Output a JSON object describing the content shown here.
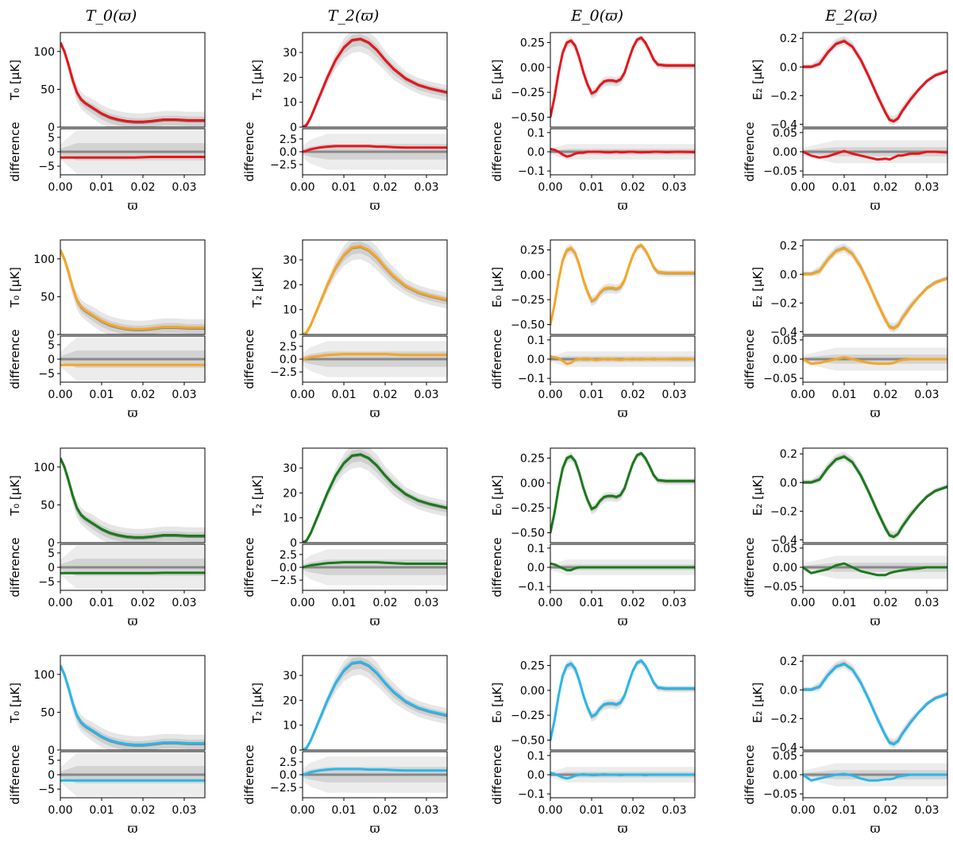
{
  "chart_data": {
    "type": "line",
    "layout": "4 rows x 4 columns, each panel with a main plot and a difference subplot",
    "column_titles": [
      "T_0(ϖ)",
      "T_2(ϖ)",
      "E_0(ϖ)",
      "E_2(ϖ)"
    ],
    "xlabel": "ϖ",
    "diff_ylabel": "difference",
    "xlim": [
      0,
      0.035
    ],
    "xticks": [
      0.0,
      0.01,
      0.02,
      0.03
    ],
    "xtick_labels": [
      "0.00",
      "0.01",
      "0.02",
      "0.03"
    ],
    "row_colors": [
      "#e8141b",
      "#f5a623",
      "#1a7a1a",
      "#29b6ea"
    ],
    "reference_color": "#888888",
    "band_color": "#dcdcdc",
    "columns": [
      {
        "key": "T0",
        "ylabel": "T₀ [μK]",
        "ylim": [
          0,
          125
        ],
        "yticks": [
          0,
          50,
          100
        ],
        "ytick_labels": [
          "0",
          "50",
          "100"
        ],
        "diff_ylim": [
          -8,
          8
        ],
        "diff_yticks": [
          -5,
          0,
          5
        ],
        "diff_ytick_labels": [
          "−5",
          "0",
          "5"
        ],
        "x": [
          0.0,
          0.001,
          0.002,
          0.003,
          0.004,
          0.005,
          0.006,
          0.008,
          0.01,
          0.012,
          0.014,
          0.016,
          0.018,
          0.02,
          0.022,
          0.025,
          0.028,
          0.031,
          0.035
        ],
        "y": [
          112,
          100,
          82,
          62,
          46,
          37,
          32,
          25,
          18,
          13,
          10,
          8,
          7,
          7,
          8,
          10,
          10,
          9,
          9
        ],
        "ref_offset": 3,
        "band_halfwidth": [
          2,
          3,
          5,
          6,
          7,
          7,
          7,
          8,
          8,
          8,
          8,
          8,
          8,
          8,
          8,
          8,
          8,
          8,
          8
        ],
        "diff_rows": [
          [
            -2,
            -2,
            -2,
            -2,
            -2,
            -2,
            -2,
            -2,
            -2,
            -2,
            -2,
            -2,
            -2,
            -1.9,
            -1.8,
            -1.8,
            -1.8,
            -1.8,
            -1.8
          ],
          [
            -2,
            -2,
            -2,
            -2,
            -2,
            -2,
            -2,
            -2,
            -2,
            -2,
            -2,
            -2,
            -2,
            -2,
            -2,
            -2,
            -2,
            -2,
            -2
          ],
          [
            -2,
            -2,
            -2,
            -2,
            -2,
            -2,
            -2,
            -2,
            -2,
            -2,
            -2,
            -2,
            -2,
            -2,
            -2,
            -1.9,
            -1.9,
            -1.9,
            -1.9
          ],
          [
            -2,
            -2,
            -2,
            -2,
            -2,
            -2,
            -2,
            -2,
            -2,
            -2,
            -2,
            -2,
            -2,
            -2,
            -2,
            -2,
            -2,
            -2,
            -2
          ]
        ],
        "diff_band_outer": 7.5,
        "diff_band_inner": 3.0
      },
      {
        "key": "T2",
        "ylabel": "T₂ [μK]",
        "ylim": [
          0,
          38
        ],
        "yticks": [
          0,
          10,
          20,
          30
        ],
        "ytick_labels": [
          "0",
          "10",
          "20",
          "30"
        ],
        "diff_ylim": [
          -4.5,
          4.5
        ],
        "diff_yticks": [
          -2.5,
          0,
          2.5
        ],
        "diff_ytick_labels": [
          "−2.5",
          "0.0",
          "2.5"
        ],
        "x": [
          0.0,
          0.001,
          0.002,
          0.004,
          0.006,
          0.008,
          0.01,
          0.012,
          0.014,
          0.016,
          0.018,
          0.02,
          0.022,
          0.025,
          0.028,
          0.031,
          0.035
        ],
        "y": [
          0,
          1,
          4,
          12,
          20,
          27,
          32,
          35,
          35.5,
          34,
          31,
          27,
          23.5,
          19.5,
          17,
          15.5,
          14
        ],
        "ref_offset": 0.8,
        "band_halfwidth": [
          0,
          0.2,
          0.5,
          1,
          1.5,
          2,
          2.5,
          3,
          3,
          3,
          3,
          2.5,
          2.5,
          2,
          2,
          2,
          2
        ],
        "diff_rows": [
          [
            0,
            0.2,
            0.5,
            0.8,
            1.0,
            1.1,
            1.1,
            1.1,
            1.1,
            1.1,
            1.0,
            1.0,
            0.9,
            0.8,
            0.8,
            0.8,
            0.8
          ],
          [
            0,
            0.2,
            0.4,
            0.6,
            0.8,
            0.9,
            1.0,
            1.0,
            1.0,
            1.0,
            1.0,
            1.0,
            0.9,
            0.8,
            0.8,
            0.8,
            0.8
          ],
          [
            0,
            0.2,
            0.4,
            0.6,
            0.8,
            0.9,
            1.0,
            1.0,
            1.0,
            1.0,
            1.0,
            0.9,
            0.8,
            0.7,
            0.7,
            0.7,
            0.7
          ],
          [
            0,
            0.2,
            0.5,
            0.8,
            1.0,
            1.1,
            1.1,
            1.1,
            1.1,
            1.0,
            1.0,
            1.0,
            0.9,
            0.8,
            0.8,
            0.8,
            0.8
          ]
        ],
        "diff_band_outer": 3.5,
        "diff_band_inner": 1.5
      },
      {
        "key": "E0",
        "ylabel": "E₀ [μK]",
        "ylim": [
          -0.6,
          0.35
        ],
        "yticks": [
          -0.5,
          -0.25,
          0.0,
          0.25
        ],
        "ytick_labels": [
          "−0.50",
          "−0.25",
          "0.00",
          "0.25"
        ],
        "diff_ylim": [
          -0.12,
          0.12
        ],
        "diff_yticks": [
          -0.1,
          0.0,
          0.1
        ],
        "diff_ytick_labels": [
          "−0.1",
          "0.0",
          "0.1"
        ],
        "x": [
          0.0,
          0.001,
          0.002,
          0.003,
          0.004,
          0.005,
          0.006,
          0.007,
          0.008,
          0.009,
          0.01,
          0.011,
          0.012,
          0.013,
          0.014,
          0.015,
          0.016,
          0.017,
          0.018,
          0.019,
          0.02,
          0.021,
          0.022,
          0.023,
          0.024,
          0.025,
          0.026,
          0.028,
          0.031,
          0.035
        ],
        "y": [
          -0.5,
          -0.3,
          -0.05,
          0.15,
          0.25,
          0.27,
          0.22,
          0.1,
          -0.05,
          -0.17,
          -0.26,
          -0.24,
          -0.18,
          -0.14,
          -0.13,
          -0.13,
          -0.14,
          -0.12,
          -0.05,
          0.08,
          0.2,
          0.28,
          0.3,
          0.25,
          0.17,
          0.08,
          0.03,
          0.02,
          0.02,
          0.02
        ],
        "ref_offset": 0.015,
        "band_halfwidth": [
          0.02,
          0.02,
          0.02,
          0.03,
          0.03,
          0.03,
          0.03,
          0.03,
          0.03,
          0.03,
          0.03,
          0.03,
          0.03,
          0.03,
          0.03,
          0.03,
          0.03,
          0.03,
          0.03,
          0.02,
          0.02,
          0.02,
          0.02,
          0.02,
          0.02,
          0.02,
          0.02,
          0.02,
          0.02,
          0.02
        ],
        "diff_rows": [
          [
            0.015,
            0.01,
            0.0,
            -0.015,
            -0.025,
            -0.02,
            -0.01,
            -0.005,
            -0.005,
            0.0,
            0.0,
            0.0,
            0.0,
            -0.002,
            -0.003,
            -0.002,
            0.0,
            -0.003,
            -0.002,
            0.0,
            0.0,
            -0.002,
            -0.003,
            -0.002,
            -0.002,
            0.0,
            0.0,
            -0.002,
            0.0,
            -0.002
          ],
          [
            0.015,
            0.01,
            0.005,
            -0.01,
            -0.025,
            -0.02,
            -0.005,
            0.0,
            0.002,
            0.003,
            0.0,
            -0.005,
            -0.002,
            0.0,
            0.002,
            0.0,
            -0.002,
            -0.004,
            0.0,
            0.0,
            0.002,
            0.0,
            -0.002,
            0.0,
            0.0,
            0.002,
            0.0,
            0.0,
            0.002,
            0.0
          ],
          [
            0.02,
            0.015,
            0.005,
            -0.005,
            -0.015,
            -0.015,
            -0.005,
            0.0,
            0.0,
            0.0,
            0.0,
            0.0,
            0.0,
            0.0,
            0.0,
            0.0,
            0.0,
            0.0,
            0.0,
            0.0,
            0.0,
            0.0,
            0.0,
            0.0,
            0.0,
            0.0,
            0.0,
            0.0,
            0.0,
            0.0
          ],
          [
            0.01,
            0.005,
            -0.005,
            -0.015,
            -0.02,
            -0.015,
            -0.005,
            0.0,
            0.002,
            0.0,
            -0.002,
            -0.002,
            0.0,
            0.002,
            0.0,
            0.0,
            0.0,
            -0.002,
            0.0,
            0.0,
            0.0,
            0.0,
            0.0,
            -0.002,
            0.0,
            0.0,
            0.0,
            0.0,
            0.0,
            0.0
          ]
        ],
        "diff_band_outer": 0.04,
        "diff_band_inner": 0.015
      },
      {
        "key": "E2",
        "ylabel": "E₂ [μK]",
        "ylim": [
          -0.42,
          0.24
        ],
        "yticks": [
          -0.4,
          -0.2,
          0.0,
          0.2
        ],
        "ytick_labels": [
          "−0.4",
          "−0.2",
          "0.0",
          "0.2"
        ],
        "diff_ylim": [
          -0.06,
          0.06
        ],
        "diff_yticks": [
          -0.05,
          0.0,
          0.05
        ],
        "diff_ytick_labels": [
          "−0.05",
          "0.00",
          "0.05"
        ],
        "x": [
          0.0,
          0.002,
          0.004,
          0.006,
          0.008,
          0.01,
          0.012,
          0.014,
          0.016,
          0.018,
          0.02,
          0.021,
          0.022,
          0.023,
          0.024,
          0.026,
          0.028,
          0.03,
          0.032,
          0.035
        ],
        "y": [
          0.0,
          0.0,
          0.02,
          0.1,
          0.16,
          0.18,
          0.14,
          0.05,
          -0.07,
          -0.2,
          -0.32,
          -0.37,
          -0.38,
          -0.36,
          -0.31,
          -0.23,
          -0.16,
          -0.1,
          -0.06,
          -0.03
        ],
        "ref_offset": -0.01,
        "band_halfwidth": [
          0.01,
          0.01,
          0.02,
          0.02,
          0.02,
          0.02,
          0.02,
          0.02,
          0.02,
          0.02,
          0.02,
          0.02,
          0.02,
          0.02,
          0.02,
          0.02,
          0.01,
          0.01,
          0.01,
          0.01
        ],
        "diff_rows": [
          [
            0.0,
            -0.01,
            -0.015,
            -0.012,
            -0.005,
            0.002,
            -0.005,
            -0.01,
            -0.015,
            -0.02,
            -0.018,
            -0.02,
            -0.015,
            -0.01,
            -0.01,
            -0.005,
            -0.005,
            0.0,
            0.0,
            -0.002
          ],
          [
            0.0,
            -0.012,
            -0.01,
            -0.005,
            0.0,
            0.005,
            0.0,
            -0.005,
            -0.01,
            -0.012,
            -0.012,
            -0.012,
            -0.01,
            -0.005,
            -0.002,
            0.0,
            0.0,
            0.0,
            0.0,
            0.0
          ],
          [
            0.0,
            -0.015,
            -0.01,
            -0.005,
            0.005,
            0.01,
            0.0,
            -0.01,
            -0.015,
            -0.02,
            -0.02,
            -0.015,
            -0.012,
            -0.01,
            -0.008,
            -0.005,
            -0.003,
            0.0,
            0.0,
            0.0
          ],
          [
            0.0,
            -0.015,
            -0.01,
            -0.005,
            0.0,
            0.002,
            -0.002,
            -0.01,
            -0.015,
            -0.015,
            -0.012,
            -0.012,
            -0.01,
            -0.005,
            -0.003,
            0.0,
            0.0,
            0.0,
            0.0,
            0.0
          ]
        ],
        "diff_band_outer": 0.03,
        "diff_band_inner": 0.012
      }
    ]
  }
}
